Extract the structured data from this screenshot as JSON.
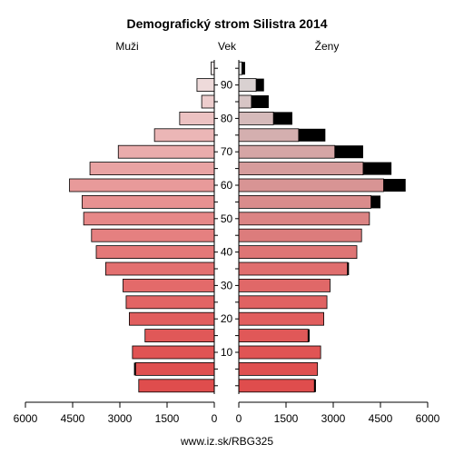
{
  "chart_data": {
    "type": "population-pyramid",
    "title": "Demografický strom Silistra 2014",
    "left_label": "Muži",
    "center_label": "Vek",
    "right_label": "Ženy",
    "footer": "www.iz.sk/RBG325",
    "age_ticks": [
      10,
      20,
      30,
      40,
      50,
      60,
      70,
      80,
      90
    ],
    "x_ticks_left": [
      "6000",
      "4500",
      "3000",
      "1500",
      "0"
    ],
    "x_ticks_right": [
      "0",
      "1500",
      "3000",
      "4500",
      "6000"
    ],
    "xlim": [
      0,
      6000
    ],
    "colors": {
      "excess": "#000000",
      "outline": "#000000"
    },
    "groups": [
      {
        "age": "0-4",
        "male": 2400,
        "female": 2450,
        "male_color": "#df4d4d",
        "female_color": "#df4d4d"
      },
      {
        "age": "5-9",
        "male": 2550,
        "female": 2500,
        "male_color": "#df5050",
        "female_color": "#df5050"
      },
      {
        "age": "10-14",
        "male": 2600,
        "female": 2600,
        "male_color": "#e05454",
        "female_color": "#e05454"
      },
      {
        "age": "15-19",
        "male": 2200,
        "female": 2250,
        "male_color": "#e05858",
        "female_color": "#e05858"
      },
      {
        "age": "20-24",
        "male": 2700,
        "female": 2700,
        "male_color": "#e15e5e",
        "female_color": "#e15e5e"
      },
      {
        "age": "25-29",
        "male": 2800,
        "female": 2800,
        "male_color": "#e26464",
        "female_color": "#e06262"
      },
      {
        "age": "30-34",
        "male": 2900,
        "female": 2900,
        "male_color": "#e36a6a",
        "female_color": "#e06868"
      },
      {
        "age": "35-39",
        "male": 3450,
        "female": 3500,
        "male_color": "#e37070",
        "female_color": "#e06e6e"
      },
      {
        "age": "40-44",
        "male": 3750,
        "female": 3750,
        "male_color": "#e47878",
        "female_color": "#de7575"
      },
      {
        "age": "45-49",
        "male": 3900,
        "female": 3900,
        "male_color": "#e58080",
        "female_color": "#dc7c7c"
      },
      {
        "age": "50-54",
        "male": 4150,
        "female": 4150,
        "male_color": "#e68888",
        "female_color": "#db8484"
      },
      {
        "age": "55-59",
        "male": 4200,
        "female": 4500,
        "male_color": "#e79191",
        "female_color": "#d98c8c"
      },
      {
        "age": "60-64",
        "male": 4600,
        "female": 5300,
        "male_color": "#e89a9a",
        "female_color": "#d89494"
      },
      {
        "age": "65-69",
        "male": 3950,
        "female": 4850,
        "male_color": "#e9a3a3",
        "female_color": "#d69c9c"
      },
      {
        "age": "70-74",
        "male": 3050,
        "female": 3950,
        "male_color": "#eaacac",
        "female_color": "#d5a5a5"
      },
      {
        "age": "75-79",
        "male": 1900,
        "female": 2750,
        "male_color": "#ebb6b6",
        "female_color": "#d4afaf"
      },
      {
        "age": "80-84",
        "male": 1100,
        "female": 1700,
        "male_color": "#ecc2c2",
        "female_color": "#d5baba"
      },
      {
        "age": "85-89",
        "male": 400,
        "female": 950,
        "male_color": "#edcdcd",
        "female_color": "#d7c5c5"
      },
      {
        "age": "90-94",
        "male": 550,
        "female": 800,
        "male_color": "#eedada",
        "female_color": "#d9d1d1"
      },
      {
        "age": "95+",
        "male": 100,
        "female": 200,
        "male_color": "#efe6e6",
        "female_color": "#dcdcdc"
      }
    ]
  }
}
